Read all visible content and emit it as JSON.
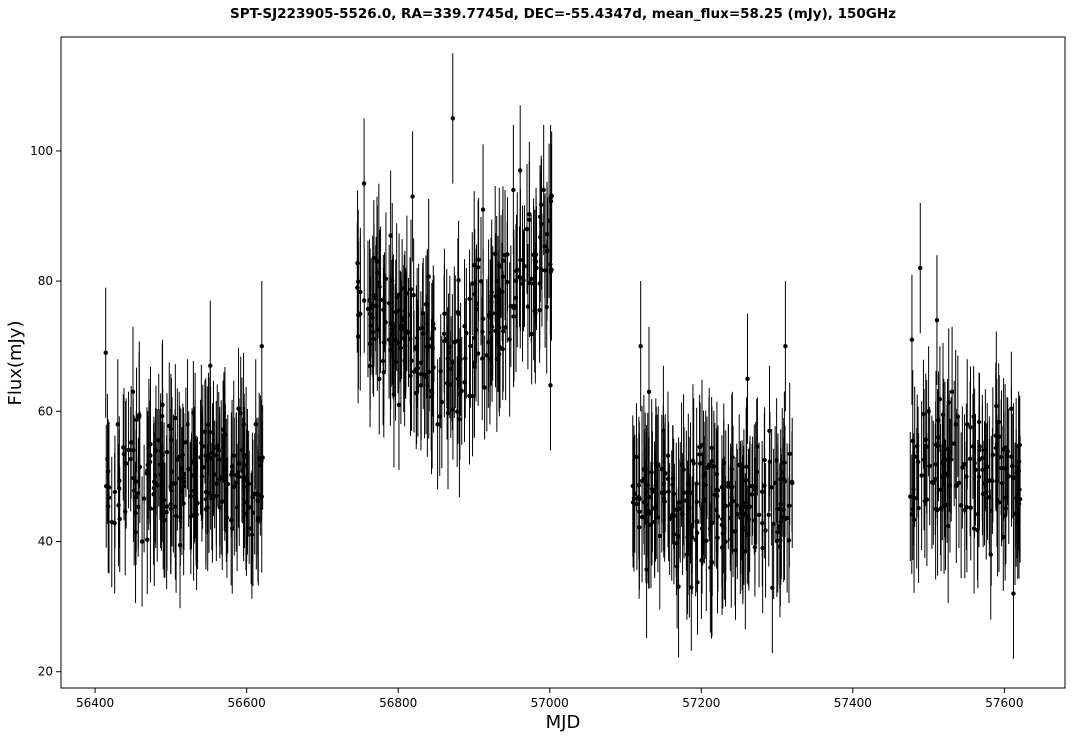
{
  "chart_data": {
    "type": "scatter",
    "title": "SPT-SJ223905-5526.0, RA=339.7745d, DEC=-55.4347d, mean_flux=58.25 (mJy), 150GHz",
    "xlabel": "MJD",
    "ylabel": "Flux(mJy)",
    "xlim": [
      56355,
      57680
    ],
    "ylim": [
      17.5,
      117.5
    ],
    "xticks": [
      56400,
      56600,
      56800,
      57000,
      57200,
      57400,
      57600
    ],
    "yticks": [
      20,
      40,
      60,
      80,
      100
    ],
    "grid": false,
    "legend": "none",
    "colors": {
      "marker": "#000000",
      "errorbar": "#000000",
      "frame": "#000000"
    },
    "error_bar_typical": 10,
    "seasons": [
      {
        "x_range": [
          56413,
          56622
        ],
        "flux_mean": 50,
        "flux_spread": 7.5,
        "n_points": 190
      },
      {
        "x_range": [
          56745,
          57003
        ],
        "flux_mean_start": 77,
        "flux_mean_mid": 67,
        "flux_mean_end": 86,
        "flux_spread": 9,
        "n_points": 230
      },
      {
        "x_range": [
          57108,
          57325
        ],
        "flux_mean": 46,
        "flux_spread": 7.5,
        "n_points": 200
      },
      {
        "x_range": [
          57475,
          57622
        ],
        "flux_mean": 51,
        "flux_spread": 8,
        "n_points": 120
      }
    ],
    "series": [
      {
        "x": [
          56414,
          56422,
          56430,
          56441,
          56450,
          56462,
          56471,
          56480,
          56489,
          56500,
          56511,
          56522,
          56530,
          56541,
          56552,
          56560,
          56570,
          56581,
          56590,
          56601,
          56612,
          56620,
          56746,
          56755,
          56763,
          56772,
          56781,
          56790,
          56801,
          56810,
          56819,
          56830,
          56841,
          56852,
          56861,
          56872,
          56879,
          56890,
          56901,
          56912,
          56921,
          56930,
          56941,
          56952,
          56961,
          56970,
          56982,
          56992,
          57001,
          57110,
          57120,
          57131,
          57140,
          57150,
          57161,
          57170,
          57181,
          57190,
          57201,
          57212,
          57221,
          57232,
          57241,
          57252,
          57261,
          57270,
          57281,
          57290,
          57301,
          57311,
          57320,
          57478,
          57489,
          57500,
          57511,
          57520,
          57531,
          57540,
          57551,
          57560,
          57571,
          57582,
          57590,
          57601,
          57612,
          57620
        ],
        "y": [
          69,
          43,
          58,
          52,
          63,
          40,
          55,
          49,
          61,
          45,
          53,
          58,
          44,
          50,
          67,
          47,
          56,
          42,
          52,
          48,
          58,
          70,
          79,
          95,
          75,
          83,
          66,
          87,
          61,
          72,
          93,
          64,
          70,
          58,
          75,
          105,
          65,
          72,
          78,
          91,
          68,
          80,
          84,
          94,
          97,
          88,
          83,
          94,
          64,
          46,
          70,
          63,
          52,
          57,
          44,
          46,
          38,
          52,
          42,
          36,
          47,
          40,
          53,
          45,
          65,
          48,
          39,
          57,
          45,
          70,
          49,
          71,
          82,
          60,
          74,
          55,
          63,
          49,
          58,
          42,
          51,
          38,
          55,
          44,
          32,
          48
        ],
        "note": "representative sample of the depicted points; the remaining points follow the per-season distributions above"
      }
    ]
  }
}
